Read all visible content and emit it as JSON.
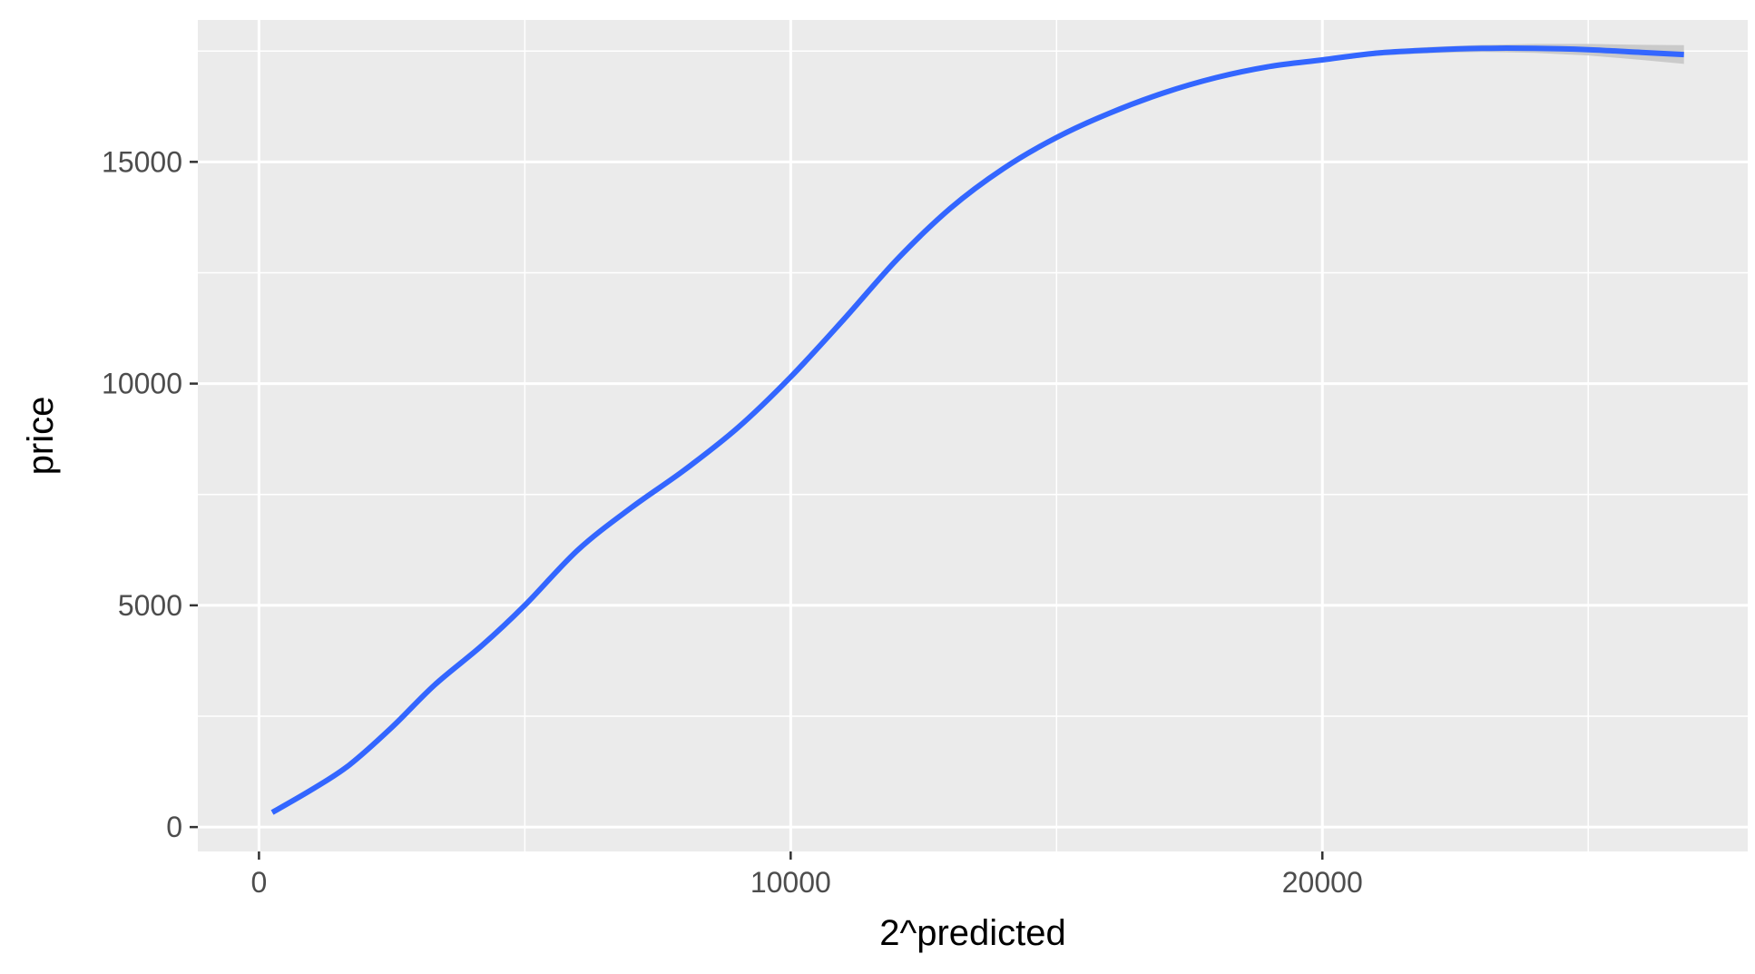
{
  "chart_data": {
    "type": "line",
    "title": "",
    "xlabel": "2^predicted",
    "ylabel": "price",
    "xlim": [
      -1150,
      28000
    ],
    "ylim": [
      -550,
      18200
    ],
    "x_ticks": [
      0,
      10000,
      20000
    ],
    "y_ticks": [
      0,
      5000,
      10000,
      15000
    ],
    "grid": true,
    "legend": "none",
    "colors": {
      "panel_background": "#ebebeb",
      "grid": "#ffffff",
      "line": "#3366ff",
      "confidence_band": "#c7c7c7"
    },
    "series": [
      {
        "x": [
          250,
          1000,
          1700,
          2500,
          3300,
          4200,
          5000,
          6000,
          7000,
          8000,
          9000,
          10000,
          11000,
          12000,
          13000,
          14000,
          15000,
          16000,
          17000,
          18000,
          19000,
          20000,
          21000,
          22000,
          23000,
          24000,
          25000,
          26000,
          26800
        ],
        "y": [
          330,
          850,
          1400,
          2250,
          3200,
          4100,
          5000,
          6250,
          7200,
          8050,
          9000,
          10150,
          11450,
          12800,
          13950,
          14850,
          15550,
          16100,
          16550,
          16900,
          17150,
          17300,
          17450,
          17520,
          17560,
          17560,
          17530,
          17470,
          17420
        ],
        "band_halfwidth": [
          20,
          20,
          20,
          20,
          20,
          20,
          20,
          20,
          20,
          20,
          20,
          20,
          20,
          20,
          20,
          20,
          20,
          25,
          30,
          35,
          40,
          50,
          60,
          70,
          80,
          100,
          130,
          170,
          210
        ]
      }
    ]
  }
}
